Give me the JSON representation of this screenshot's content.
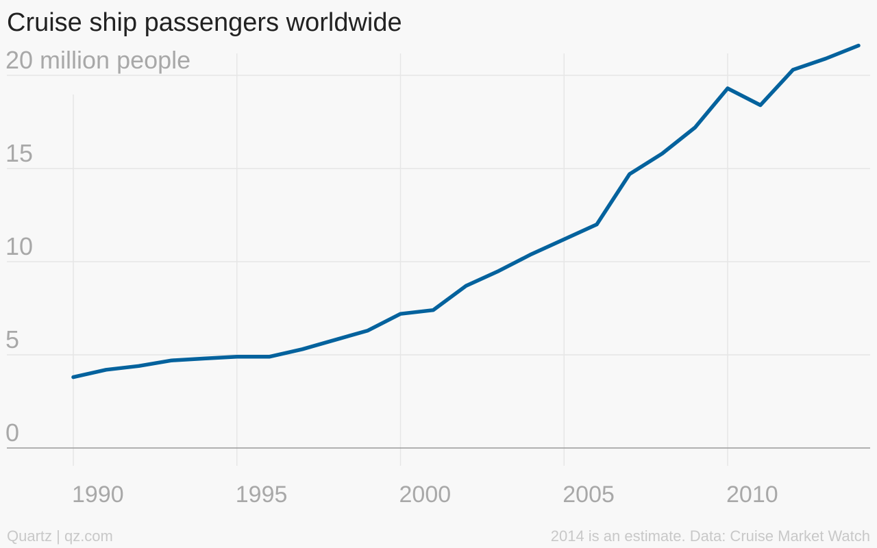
{
  "chart_data": {
    "type": "line",
    "title": "Cruise ship passengers worldwide",
    "ylabel": "",
    "y_top_label": "20 million people",
    "xlabel": "",
    "x": [
      1990,
      1991,
      1992,
      1993,
      1994,
      1995,
      1996,
      1997,
      1998,
      1999,
      2000,
      2001,
      2002,
      2003,
      2004,
      2005,
      2006,
      2007,
      2008,
      2009,
      2010,
      2011,
      2012,
      2013,
      2014
    ],
    "series": [
      {
        "values": [
          3.8,
          4.2,
          4.4,
          4.7,
          4.8,
          4.9,
          4.9,
          5.3,
          5.8,
          6.3,
          7.2,
          7.4,
          8.7,
          9.5,
          10.4,
          11.2,
          12.0,
          14.7,
          15.8,
          17.2,
          19.3,
          18.4,
          20.3,
          20.9,
          21.6
        ],
        "color": "#04629d"
      }
    ],
    "yticks": [
      0,
      5,
      10,
      15,
      20
    ],
    "ytick_labels": [
      "0",
      "5",
      "10",
      "15",
      "20 million people"
    ],
    "xticks": [
      1990,
      1995,
      2000,
      2005,
      2010
    ],
    "xtick_labels": [
      "1990",
      "1995",
      "2000",
      "2005",
      "2010"
    ],
    "xlim": [
      1990,
      2014
    ],
    "ylim": [
      0,
      20
    ],
    "grid": true,
    "legend": "none"
  },
  "footer": {
    "credit": "Quartz | qz.com",
    "source": "2014 is an estimate. Data: Cruise Market Watch"
  },
  "colors": {
    "background": "#f8f8f8",
    "line": "#04629d",
    "grid": "#e6e6e6",
    "axis": "#999999",
    "tick_text": "#a8a8a8",
    "title": "#222222",
    "footer": "#c8c8c8"
  }
}
